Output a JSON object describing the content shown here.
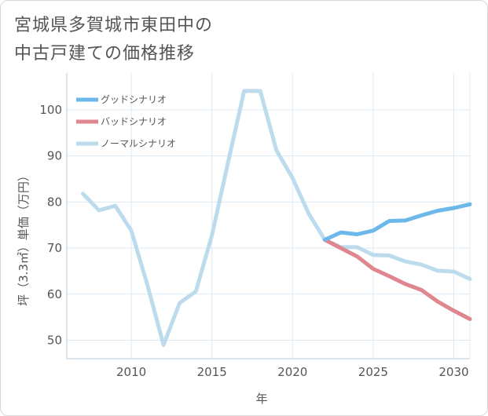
{
  "title_lines": [
    "宮城県多賀城市東田中の",
    "中古戸建ての価格推移"
  ],
  "chart_data": {
    "type": "line",
    "xlabel": "年",
    "ylabel": "坪（3.3㎡）単価（万円）",
    "xlim": [
      2006,
      2031
    ],
    "ylim": [
      46,
      108
    ],
    "xticks": [
      2010,
      2015,
      2020,
      2025,
      2030
    ],
    "yticks": [
      50,
      60,
      70,
      80,
      90,
      100
    ],
    "xtick_labels": [
      "2010",
      "2015",
      "2020",
      "2025",
      "2030"
    ],
    "ytick_labels": [
      "50",
      "60",
      "70",
      "80",
      "90",
      "100"
    ],
    "legend_position": "top-left",
    "series": [
      {
        "name": "グッドシナリオ",
        "color": "#6cb8ea",
        "x": [
          2022,
          2023,
          2024,
          2025,
          2026,
          2027,
          2028,
          2029,
          2030,
          2031
        ],
        "values": [
          71.8,
          73.4,
          73.0,
          73.8,
          75.9,
          76.0,
          77.1,
          78.1,
          78.7,
          79.5
        ]
      },
      {
        "name": "バッドシナリオ",
        "color": "#e0868f",
        "x": [
          2022,
          2023,
          2024,
          2025,
          2026,
          2027,
          2028,
          2029,
          2030,
          2031
        ],
        "values": [
          71.8,
          70.0,
          68.2,
          65.5,
          63.9,
          62.2,
          60.9,
          58.4,
          56.4,
          54.6
        ]
      },
      {
        "name": "ノーマルシナリオ",
        "color": "#bcdced",
        "x": [
          2007,
          2008,
          2009,
          2010,
          2011,
          2012,
          2013,
          2014,
          2015,
          2016,
          2017,
          2018,
          2019,
          2020,
          2021,
          2022,
          2023,
          2024,
          2025,
          2026,
          2027,
          2028,
          2029,
          2030,
          2031
        ],
        "values": [
          81.8,
          78.2,
          79.2,
          73.8,
          62.0,
          49.0,
          58.1,
          60.6,
          72.8,
          88.6,
          104.1,
          104.1,
          91.2,
          85.2,
          77.5,
          71.8,
          70.2,
          70.2,
          68.5,
          68.4,
          67.1,
          66.4,
          65.1,
          64.9,
          63.3
        ]
      }
    ]
  }
}
